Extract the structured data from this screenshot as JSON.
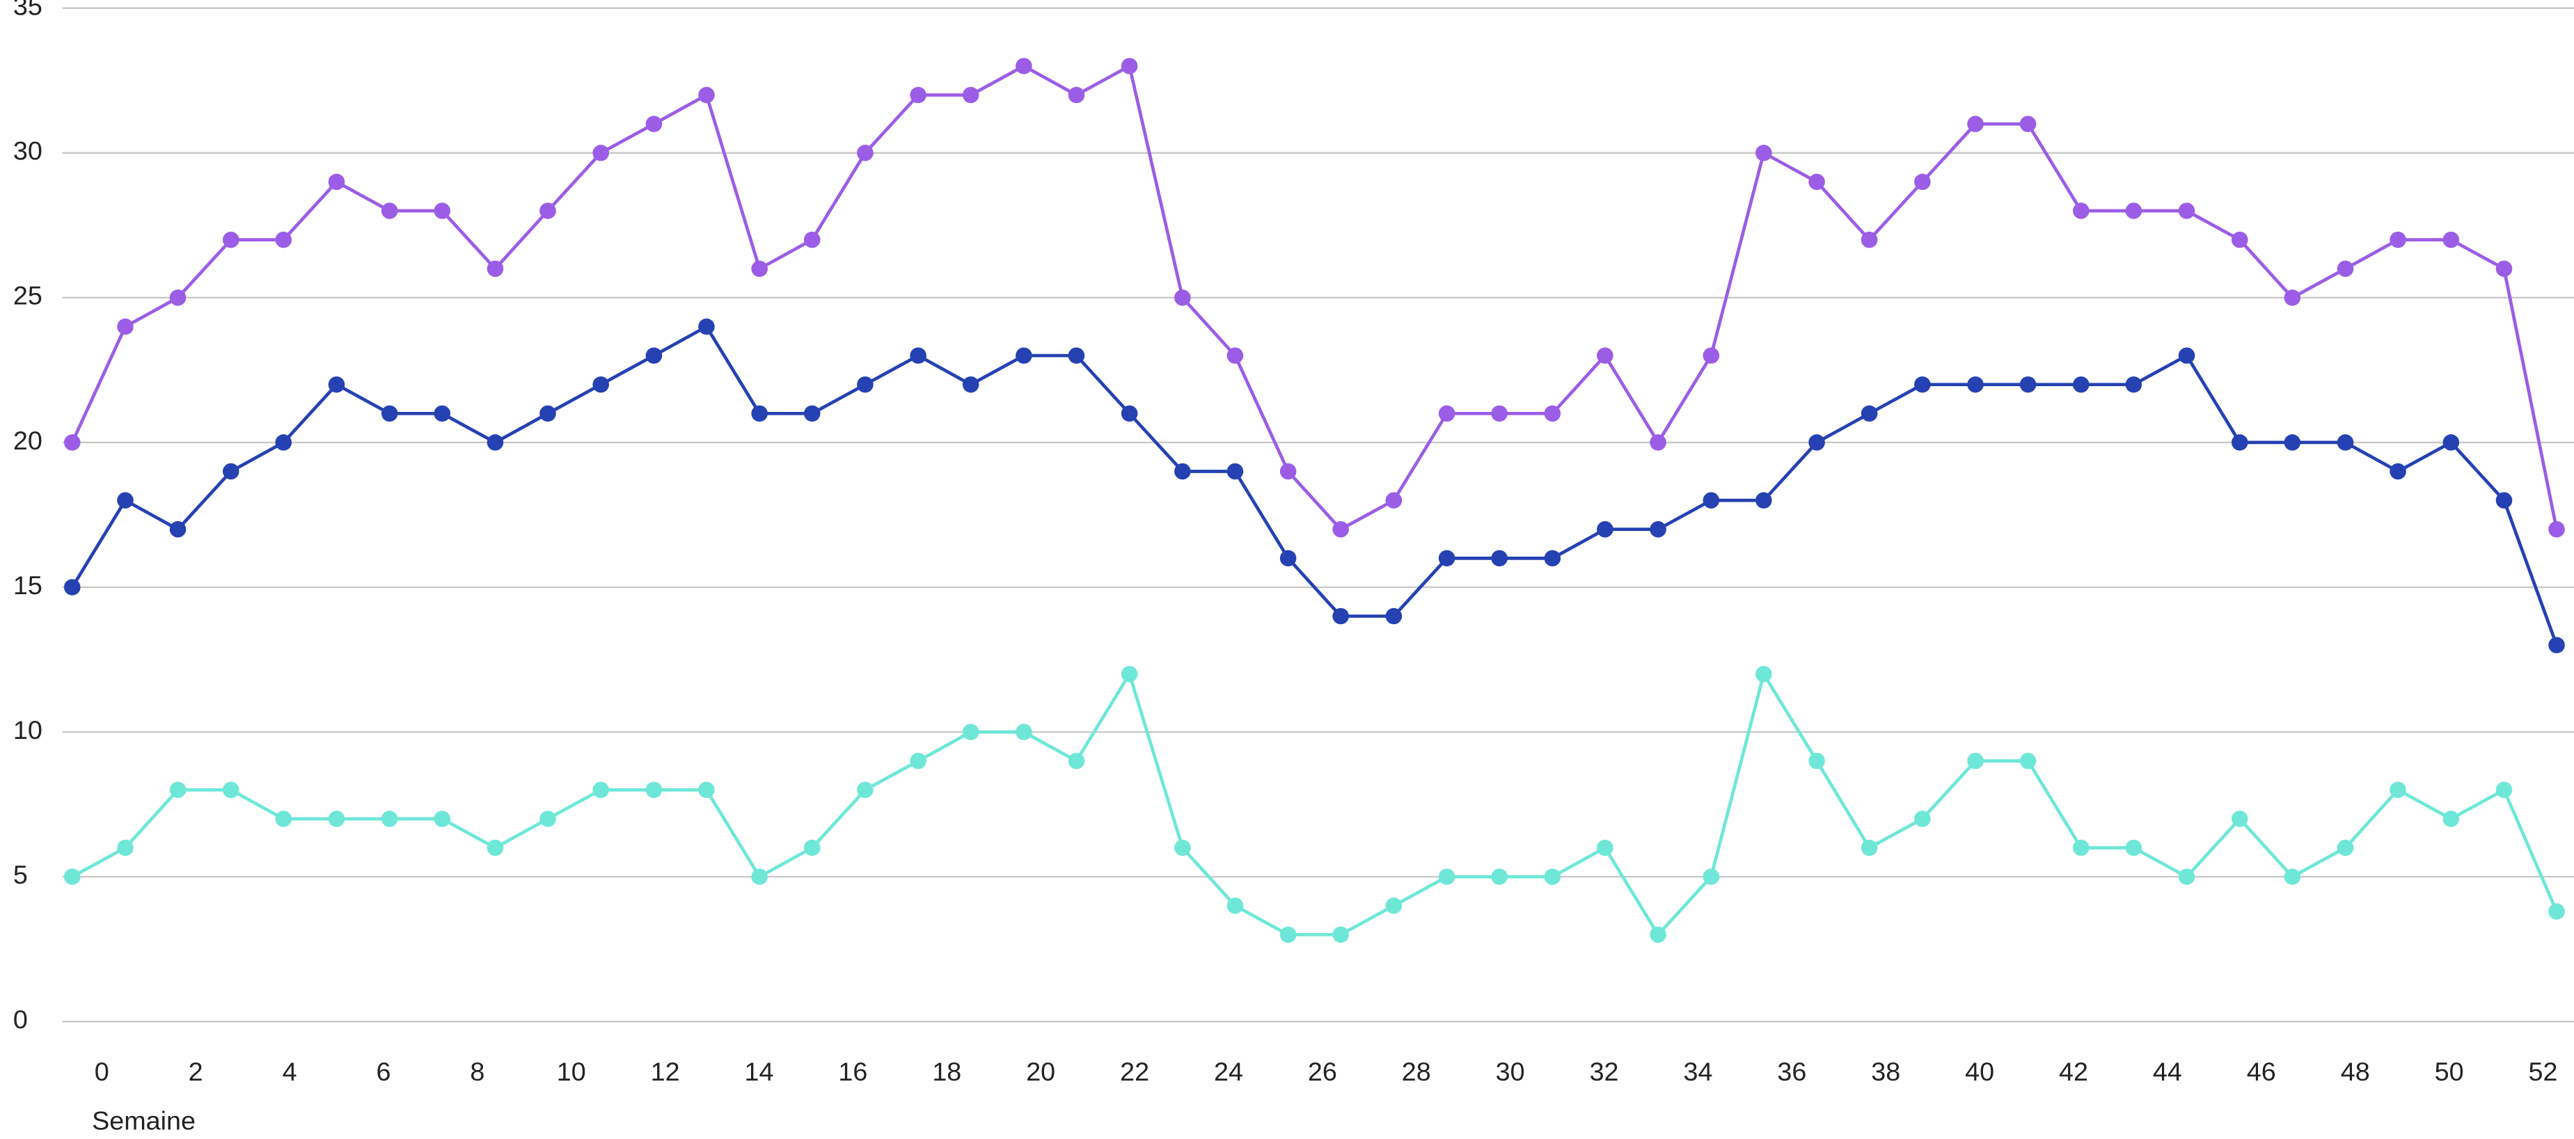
{
  "chart_data": {
    "type": "line",
    "x_label": "Semaine",
    "x": [
      -0.63,
      0.5,
      1.62,
      2.75,
      3.87,
      5.0,
      6.13,
      7.25,
      8.38,
      9.5,
      10.63,
      11.76,
      12.88,
      14.01,
      15.13,
      16.26,
      17.39,
      18.51,
      19.64,
      20.76,
      21.89,
      23.02,
      24.14,
      25.27,
      26.39,
      27.52,
      28.65,
      29.77,
      30.9,
      32.02,
      33.15,
      34.28,
      35.4,
      36.53,
      37.65,
      38.78,
      39.91,
      41.03,
      42.16,
      43.28,
      44.41,
      45.54,
      46.66,
      47.79,
      48.91,
      50.04,
      51.17,
      52.29
    ],
    "series": [
      {
        "color": "#9b5de5",
        "values": [
          20,
          24,
          25,
          27,
          27,
          29,
          28,
          28,
          26,
          28,
          30,
          31,
          32,
          26,
          27,
          30,
          32,
          32,
          33,
          32,
          33,
          25,
          23,
          19,
          17,
          18,
          21,
          21,
          21,
          23,
          20,
          23,
          30,
          29,
          27,
          29,
          31,
          31,
          28,
          28,
          28,
          27,
          25,
          26,
          27,
          27,
          26,
          17
        ]
      },
      {
        "color": "#2541b2",
        "values": [
          15,
          18,
          17,
          19,
          20,
          22,
          21,
          21,
          20,
          21,
          22,
          23,
          24,
          21,
          21,
          22,
          23,
          22,
          23,
          23,
          21,
          19,
          19,
          16,
          14,
          14,
          16,
          16,
          16,
          17,
          17,
          18,
          18,
          20,
          21,
          22,
          22,
          22,
          22,
          22,
          23,
          20,
          20,
          20,
          19,
          20,
          18,
          13
        ]
      },
      {
        "color": "#6ee7d8",
        "values": [
          5,
          6,
          8,
          8,
          7,
          7,
          7,
          7,
          6,
          7,
          8,
          8,
          8,
          5,
          6,
          8,
          9,
          10,
          10,
          9,
          12,
          6,
          4,
          3,
          3,
          4,
          5,
          5,
          5,
          6,
          3,
          5,
          12,
          9,
          6,
          7,
          9,
          9,
          6,
          6,
          5,
          7,
          5,
          6,
          8,
          7,
          8,
          3.8
        ]
      }
    ],
    "xlim": [
      -0.84,
      52.66
    ],
    "xticks": [
      0,
      2,
      4,
      6,
      8,
      10,
      12,
      14,
      16,
      18,
      20,
      22,
      24,
      26,
      28,
      30,
      32,
      34,
      36,
      38,
      40,
      42,
      44,
      46,
      48,
      50,
      52
    ],
    "ylim": [
      0,
      35
    ],
    "yticks": [
      0,
      5,
      10,
      15,
      20,
      25,
      30,
      35
    ],
    "grid": true
  }
}
